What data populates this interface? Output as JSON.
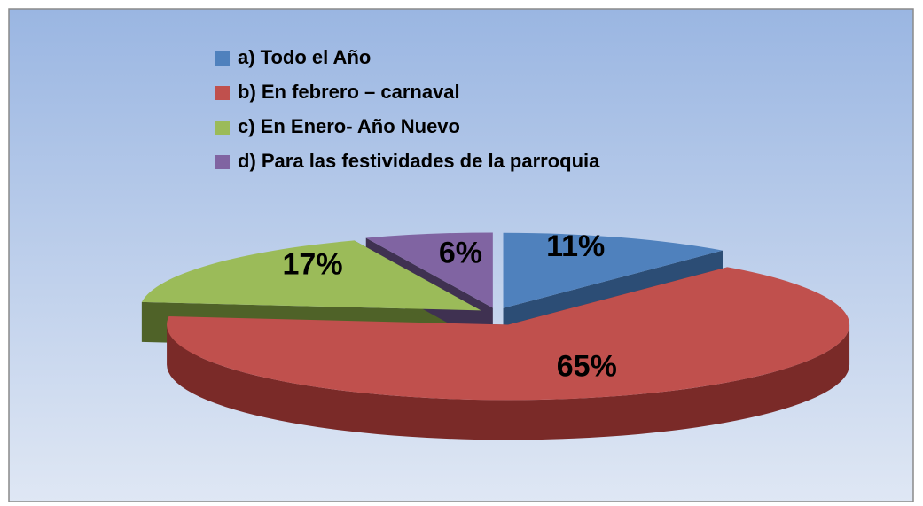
{
  "chart_data": {
    "type": "pie",
    "categories": [
      "a) Todo el Año",
      "b) En febrero – carnaval",
      "c) En Enero- Año Nuevo",
      "d) Para las festividades de la parroquia"
    ],
    "values": [
      11,
      65,
      17,
      6
    ],
    "value_labels": [
      "11%",
      "65%",
      "17%",
      "6%"
    ],
    "colors": [
      "#4f81bd",
      "#c0504d",
      "#9bbb59",
      "#8064a2"
    ],
    "side_colors": [
      "#2c4d75",
      "#7a2a28",
      "#4f6228",
      "#3f3151"
    ],
    "legend": "top"
  }
}
